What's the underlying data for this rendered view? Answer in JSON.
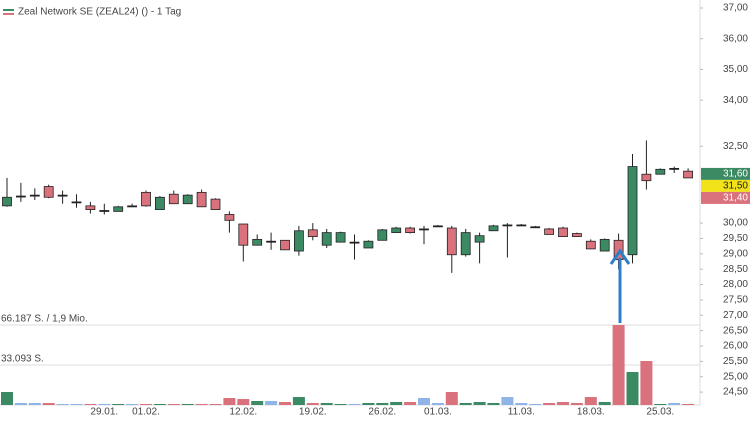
{
  "chart_data": {
    "type": "candlestick",
    "title": "Zeal Network SE (ZEAL24) () - 1 Tag",
    "categories": [
      null,
      null,
      null,
      null,
      null,
      null,
      null,
      "29.01.",
      null,
      null,
      "01.02.",
      null,
      null,
      null,
      null,
      null,
      null,
      "12.02.",
      null,
      null,
      null,
      null,
      "19.02.",
      null,
      null,
      null,
      null,
      "26.02.",
      null,
      null,
      null,
      "01.03.",
      null,
      null,
      null,
      null,
      null,
      "11.03.",
      null,
      null,
      null,
      null,
      "18.03.",
      null,
      null,
      null,
      null,
      "25.03.",
      null,
      null
    ],
    "open": [
      30.56,
      30.88,
      30.91,
      31.19,
      30.91,
      30.69,
      30.56,
      30.41,
      30.38,
      30.56,
      31.0,
      30.44,
      30.94,
      30.63,
      31.0,
      30.78,
      30.28,
      29.97,
      29.28,
      29.41,
      29.44,
      29.09,
      29.78,
      29.28,
      29.38,
      29.38,
      29.19,
      29.44,
      29.69,
      29.84,
      29.81,
      29.91,
      29.84,
      28.97,
      29.38,
      29.75,
      29.94,
      29.94,
      29.88,
      29.81,
      29.84,
      29.66,
      29.41,
      29.09,
      29.44,
      28.97,
      31.59,
      31.59,
      31.78,
      31.69
    ],
    "close": [
      30.84,
      30.88,
      30.91,
      30.84,
      30.91,
      30.69,
      30.44,
      30.41,
      30.53,
      30.56,
      30.56,
      30.84,
      30.63,
      30.91,
      30.53,
      30.44,
      30.09,
      29.28,
      29.47,
      29.41,
      29.13,
      29.75,
      29.56,
      29.69,
      29.69,
      29.38,
      29.41,
      29.78,
      29.84,
      29.69,
      29.81,
      29.91,
      28.97,
      29.69,
      29.59,
      29.91,
      29.94,
      29.94,
      29.88,
      29.63,
      29.56,
      29.56,
      29.16,
      29.47,
      28.81,
      31.84,
      31.38,
      31.75,
      31.78,
      31.47
    ],
    "high": [
      31.47,
      31.31,
      31.13,
      31.25,
      31.06,
      30.94,
      30.69,
      30.63,
      30.56,
      30.63,
      31.06,
      30.88,
      31.06,
      30.94,
      31.09,
      30.81,
      30.38,
      29.97,
      29.63,
      29.69,
      29.44,
      29.91,
      30.0,
      29.81,
      29.72,
      29.63,
      29.44,
      29.81,
      29.88,
      29.88,
      29.91,
      29.94,
      29.91,
      29.81,
      29.69,
      29.94,
      30.0,
      29.97,
      29.91,
      29.84,
      29.88,
      29.69,
      29.47,
      29.5,
      29.66,
      32.25,
      32.69,
      31.78,
      31.84,
      31.78
    ],
    "low": [
      30.53,
      30.69,
      30.75,
      30.81,
      30.63,
      30.5,
      30.31,
      30.28,
      30.38,
      30.53,
      30.53,
      30.44,
      30.63,
      30.63,
      30.53,
      30.44,
      29.69,
      28.75,
      29.28,
      29.13,
      29.13,
      28.94,
      29.44,
      29.19,
      29.38,
      28.81,
      29.19,
      29.44,
      29.69,
      29.66,
      29.31,
      29.88,
      28.38,
      28.91,
      28.69,
      29.75,
      28.88,
      29.91,
      29.84,
      29.63,
      29.56,
      29.56,
      29.16,
      29.09,
      28.5,
      28.69,
      31.09,
      31.59,
      31.63,
      31.47
    ],
    "volume": [
      10750,
      1650,
      1650,
      1650,
      830,
      830,
      830,
      830,
      830,
      830,
      830,
      830,
      830,
      830,
      830,
      830,
      5800,
      4950,
      3300,
      3300,
      2500,
      6600,
      1650,
      1650,
      830,
      830,
      1650,
      1650,
      2500,
      2500,
      5800,
      1650,
      10750,
      1650,
      2500,
      1650,
      6600,
      1650,
      830,
      1650,
      2500,
      1650,
      6600,
      2500,
      66187,
      27300,
      36400,
      830,
      1650,
      830
    ],
    "ylim": [
      24.08,
      37.26
    ],
    "yticks": [
      {
        "value": 24.5,
        "label": "24,50"
      },
      {
        "value": 25,
        "label": "25,00"
      },
      {
        "value": 25.5,
        "label": "25,50"
      },
      {
        "value": 26,
        "label": "26,00"
      },
      {
        "value": 26.5,
        "label": "26,50"
      },
      {
        "value": 27,
        "label": "27,00"
      },
      {
        "value": 27.5,
        "label": "27,50"
      },
      {
        "value": 28,
        "label": "28,00"
      },
      {
        "value": 28.5,
        "label": "28,50"
      },
      {
        "value": 29,
        "label": "29,00"
      },
      {
        "value": 29.5,
        "label": "29,50"
      },
      {
        "value": 30,
        "label": "30,00"
      },
      {
        "value": 32.5,
        "label": "32,50"
      },
      {
        "value": 34,
        "label": "34,00"
      },
      {
        "value": 35,
        "label": "35,00"
      },
      {
        "value": 36,
        "label": "36,00"
      },
      {
        "value": 37,
        "label": "37,00"
      }
    ],
    "price_markers": [
      {
        "value": 31.6,
        "label": "31,60",
        "color": "#3b8a64"
      },
      {
        "value": 31.5,
        "label": "31,50",
        "color": "#f2e21a"
      },
      {
        "value": 31.4,
        "label": "31,40",
        "color": "#d9727d"
      }
    ],
    "volume_ylim": [
      0,
      66187
    ],
    "volume_ticks": [
      {
        "value": 66187,
        "label": "66.187 S. / 1,9 Mio."
      },
      {
        "value": 33093,
        "label": "33.093 S."
      }
    ],
    "colors": {
      "up": "#3b8a64",
      "down": "#d9727d",
      "neutral": "#8fb4e8"
    }
  }
}
